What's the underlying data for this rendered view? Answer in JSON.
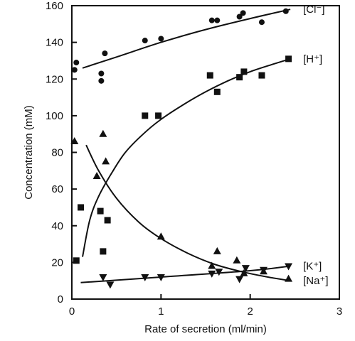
{
  "chart_data": {
    "type": "scatter",
    "title": "",
    "xlabel": "Rate of secretion (ml/min)",
    "ylabel": "Concentration (mM)",
    "xlim": [
      0,
      3
    ],
    "ylim": [
      0,
      160
    ],
    "x_ticks": [
      0,
      1,
      2,
      3
    ],
    "y_ticks": [
      0,
      20,
      40,
      60,
      80,
      100,
      120,
      140,
      160
    ],
    "grid": false,
    "legend": "none (series labeled at right end of curves)",
    "series": [
      {
        "name": "[Cl⁻]",
        "marker": "circle",
        "points": [
          [
            0.03,
            125
          ],
          [
            0.05,
            129
          ],
          [
            0.33,
            123
          ],
          [
            0.33,
            119
          ],
          [
            0.37,
            134
          ],
          [
            0.82,
            141
          ],
          [
            1.0,
            142
          ],
          [
            1.57,
            152
          ],
          [
            1.63,
            152
          ],
          [
            1.88,
            154
          ],
          [
            1.92,
            156
          ],
          [
            2.13,
            151
          ],
          [
            2.4,
            157
          ]
        ],
        "trend": [
          [
            0.12,
            126
          ],
          [
            0.5,
            132
          ],
          [
            1.0,
            140
          ],
          [
            1.5,
            147
          ],
          [
            2.0,
            153
          ],
          [
            2.45,
            158
          ]
        ]
      },
      {
        "name": "[H⁺]",
        "marker": "square",
        "points": [
          [
            0.05,
            21
          ],
          [
            0.1,
            50
          ],
          [
            0.32,
            48
          ],
          [
            0.35,
            26
          ],
          [
            0.4,
            43
          ],
          [
            0.82,
            100
          ],
          [
            0.97,
            100
          ],
          [
            1.55,
            122
          ],
          [
            1.63,
            113
          ],
          [
            1.88,
            121
          ],
          [
            1.93,
            124
          ],
          [
            2.13,
            122
          ],
          [
            2.43,
            131
          ]
        ],
        "trend": [
          [
            0.12,
            23
          ],
          [
            0.2,
            43
          ],
          [
            0.3,
            56
          ],
          [
            0.45,
            69
          ],
          [
            0.6,
            80
          ],
          [
            0.8,
            90
          ],
          [
            1.0,
            98
          ],
          [
            1.25,
            106
          ],
          [
            1.5,
            113
          ],
          [
            1.75,
            119
          ],
          [
            2.0,
            124
          ],
          [
            2.25,
            128
          ],
          [
            2.45,
            131
          ]
        ]
      },
      {
        "name": "[K⁺]",
        "marker": "triangle-down",
        "points": [
          [
            0.35,
            12
          ],
          [
            0.43,
            8
          ],
          [
            0.82,
            12
          ],
          [
            1.0,
            12
          ],
          [
            1.57,
            14
          ],
          [
            1.65,
            15
          ],
          [
            1.88,
            11
          ],
          [
            1.95,
            17
          ],
          [
            2.15,
            16
          ],
          [
            2.43,
            18
          ]
        ],
        "trend": [
          [
            0.1,
            9
          ],
          [
            1.0,
            12
          ],
          [
            2.0,
            15.5
          ],
          [
            2.45,
            18
          ]
        ]
      },
      {
        "name": "[Na⁺]",
        "marker": "triangle-up",
        "points": [
          [
            0.03,
            86
          ],
          [
            0.28,
            67
          ],
          [
            0.35,
            90
          ],
          [
            0.38,
            75
          ],
          [
            1.0,
            34
          ],
          [
            1.57,
            18
          ],
          [
            1.63,
            26
          ],
          [
            1.85,
            21
          ],
          [
            1.93,
            14
          ],
          [
            2.15,
            15
          ],
          [
            2.43,
            11
          ]
        ],
        "trend": [
          [
            0.16,
            84
          ],
          [
            0.3,
            70
          ],
          [
            0.5,
            55
          ],
          [
            0.75,
            42
          ],
          [
            1.0,
            33
          ],
          [
            1.3,
            25
          ],
          [
            1.6,
            19
          ],
          [
            1.9,
            15
          ],
          [
            2.2,
            12
          ],
          [
            2.45,
            10
          ]
        ]
      }
    ]
  }
}
